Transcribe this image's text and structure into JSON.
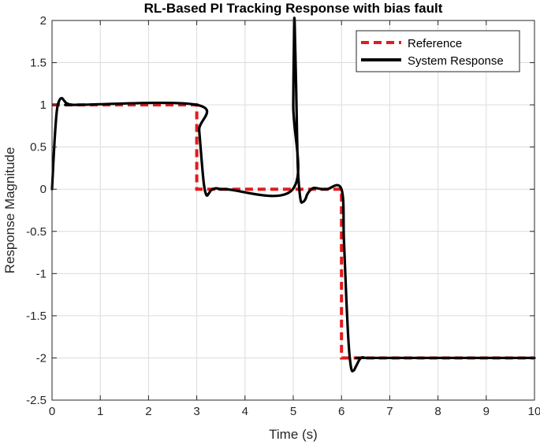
{
  "chart_data": {
    "type": "line",
    "title": "RL-Based PI Tracking Response with bias fault",
    "xlabel": "Time (s)",
    "ylabel": "Response Magnitude",
    "xlim": [
      0,
      10
    ],
    "ylim": [
      -2.5,
      2
    ],
    "xticks": [
      "0",
      "1",
      "2",
      "3",
      "4",
      "5",
      "6",
      "7",
      "8",
      "9",
      "10"
    ],
    "yticks": [
      "2",
      "1.5",
      "1",
      "0.5",
      "0",
      "-0.5",
      "-1",
      "-1.5",
      "-2",
      "-2.5"
    ],
    "grid": true,
    "legend_position": "top-right",
    "series": [
      {
        "name": "Reference",
        "color": "#e41a1c",
        "style": "dashed",
        "x": [
          0,
          3,
          3,
          6,
          6,
          10
        ],
        "y": [
          1,
          1,
          0,
          0,
          -2,
          -2
        ]
      },
      {
        "name": "System Response",
        "color": "#000000",
        "style": "solid",
        "x": [
          0,
          0.05,
          0.1,
          0.15,
          0.2,
          0.25,
          0.3,
          0.4,
          0.5,
          3.0,
          3.05,
          3.1,
          3.15,
          3.2,
          3.25,
          3.3,
          3.4,
          3.5,
          3.6,
          4.99,
          5.0,
          5.02,
          5.04,
          5.06,
          5.08,
          5.1,
          5.15,
          5.2,
          5.25,
          5.3,
          5.4,
          5.5,
          5.6,
          5.7,
          6.0,
          6.05,
          6.1,
          6.15,
          6.2,
          6.25,
          6.3,
          6.4,
          6.5,
          6.6,
          10
        ],
        "y": [
          0,
          0.55,
          0.93,
          1.05,
          1.08,
          1.05,
          1.02,
          1.0,
          1.0,
          1.0,
          0.7,
          0.35,
          0.05,
          -0.07,
          -0.05,
          -0.01,
          0.01,
          0.0,
          0.0,
          0.0,
          1.0,
          2.0,
          1.7,
          1.2,
          0.6,
          0.2,
          -0.12,
          -0.15,
          -0.12,
          -0.05,
          0.01,
          0.01,
          0.0,
          0.0,
          0.0,
          -0.6,
          -1.3,
          -1.85,
          -2.12,
          -2.15,
          -2.1,
          -2.0,
          -2.0,
          -2.0,
          -2.0
        ]
      }
    ]
  }
}
